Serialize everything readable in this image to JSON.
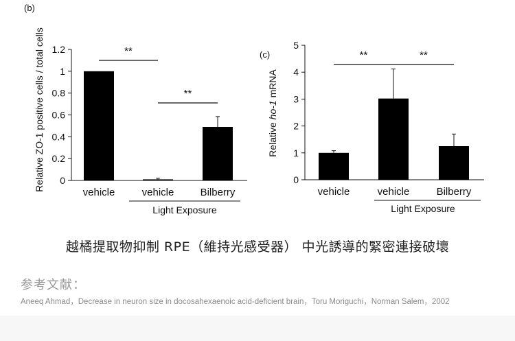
{
  "chart_data": [
    {
      "type": "bar",
      "panel_label": "(b)",
      "ylabel": "Relative ZO-1 positive cells / total cells",
      "ylim": [
        0,
        1.2
      ],
      "yticks": [
        "0",
        "0.2",
        "0.4",
        "0.6",
        "0.8",
        "1",
        "1.2"
      ],
      "categories": [
        "vehicle",
        "vehicle",
        "Bilberry"
      ],
      "values": [
        1.0,
        0.01,
        0.49
      ],
      "errors": [
        0,
        0.01,
        0.095
      ],
      "group_label": "Light Exposure",
      "significance": [
        {
          "label": "**",
          "from": 0,
          "to": 1
        },
        {
          "label": "**",
          "from": 1,
          "to": 2
        }
      ],
      "bar_color": "#000000"
    },
    {
      "type": "bar",
      "panel_label": "(c)",
      "ylabel_prefix": "Relative ",
      "ylabel_italic": "ho-1",
      "ylabel_suffix": " mRNA",
      "ylim": [
        0,
        5
      ],
      "yticks": [
        "0",
        "1",
        "2",
        "3",
        "4",
        "5"
      ],
      "categories": [
        "vehicle",
        "vehicle",
        "Bilberry"
      ],
      "values": [
        1.0,
        3.02,
        1.25
      ],
      "errors": [
        0.08,
        1.1,
        0.45
      ],
      "group_label": "Light Exposure",
      "significance": [
        {
          "label": "**",
          "from": 0,
          "to": 1
        },
        {
          "label": "**",
          "from": 1,
          "to": 2
        }
      ],
      "bar_color": "#000000"
    }
  ],
  "caption": "越橘提取物抑制 RPE（維持光感受器） 中光誘導的緊密連接破壞",
  "references": {
    "heading": "参考文献：",
    "text": "Aneeq Ahmad，Decrease in neuron size in docosahexaenoic acid-deficient brain，Toru Moriguchi，Norman Salem，2002"
  }
}
